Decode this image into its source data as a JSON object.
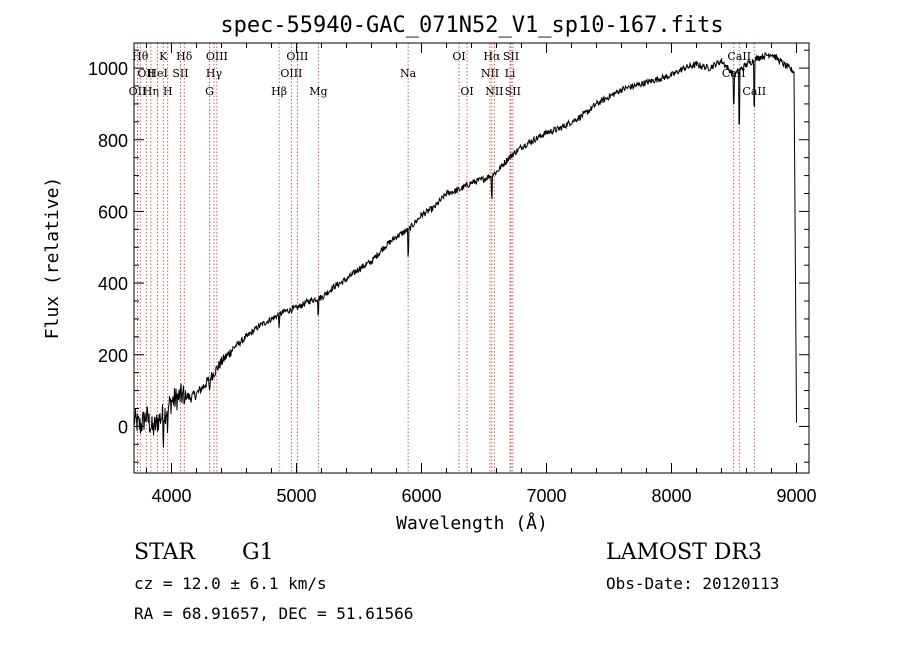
{
  "chart_data": {
    "type": "line",
    "title": "spec-55940-GAC_071N52_V1_sp10-167.fits",
    "xlabel": "Wavelength (Å)",
    "ylabel": "Flux (relative)",
    "xlim": [
      3700,
      9100
    ],
    "ylim": [
      -130,
      1070
    ],
    "x_ticks": [
      4000,
      5000,
      6000,
      7000,
      8000,
      9000
    ],
    "x_tick_labels": [
      "4000",
      "5000",
      "6000",
      "7000",
      "8000",
      "9000"
    ],
    "y_ticks": [
      0,
      200,
      400,
      600,
      800,
      1000
    ],
    "y_tick_labels": [
      "0",
      "200",
      "400",
      "600",
      "800",
      "1000"
    ],
    "series": [
      {
        "name": "spectrum",
        "x": [
          3700,
          3750,
          3800,
          3850,
          3900,
          3950,
          4000,
          4050,
          4100,
          4150,
          4200,
          4300,
          4400,
          4500,
          4600,
          4700,
          4800,
          4900,
          5000,
          5100,
          5200,
          5300,
          5400,
          5500,
          5600,
          5700,
          5800,
          5900,
          6000,
          6100,
          6200,
          6300,
          6400,
          6500,
          6600,
          6700,
          6800,
          6900,
          7000,
          7100,
          7200,
          7300,
          7400,
          7500,
          7600,
          7700,
          7800,
          7900,
          8000,
          8100,
          8200,
          8300,
          8400,
          8500,
          8600,
          8700,
          8800,
          8900,
          8980,
          9000
        ],
        "y": [
          20,
          0,
          30,
          -10,
          20,
          40,
          70,
          80,
          90,
          80,
          90,
          130,
          180,
          220,
          250,
          280,
          300,
          320,
          330,
          350,
          360,
          390,
          410,
          440,
          460,
          500,
          530,
          550,
          590,
          610,
          650,
          660,
          680,
          690,
          710,
          750,
          780,
          800,
          820,
          830,
          850,
          870,
          900,
          920,
          940,
          950,
          960,
          970,
          980,
          1000,
          1010,
          1000,
          1020,
          980,
          1010,
          1030,
          1040,
          1010,
          990,
          10
        ]
      }
    ],
    "lines": [
      {
        "x": 3750,
        "label": "Hθ",
        "row": 0
      },
      {
        "x": 3798,
        "label": "OII",
        "row": 1
      },
      {
        "x": 3728,
        "label": "OII",
        "row": 2
      },
      {
        "x": 3835,
        "label": "Hη",
        "row": 2
      },
      {
        "x": 3889,
        "label": "HeI",
        "row": 1
      },
      {
        "x": 3934,
        "label": "K",
        "row": 0
      },
      {
        "x": 3970,
        "label": "H",
        "row": 2
      },
      {
        "x": 4072,
        "label": "SII",
        "row": 1
      },
      {
        "x": 4102,
        "label": "Hδ",
        "row": 0
      },
      {
        "x": 4304,
        "label": "G",
        "row": 2
      },
      {
        "x": 4340,
        "label": "Hγ",
        "row": 1
      },
      {
        "x": 4363,
        "label": "OIII",
        "row": 0
      },
      {
        "x": 4861,
        "label": "Hβ",
        "row": 2
      },
      {
        "x": 4959,
        "label": "OIII",
        "row": 1
      },
      {
        "x": 5007,
        "label": "OIII",
        "row": 0
      },
      {
        "x": 5175,
        "label": "Mg",
        "row": 2
      },
      {
        "x": 5893,
        "label": "Na",
        "row": 1
      },
      {
        "x": 6300,
        "label": "OI",
        "row": 0
      },
      {
        "x": 6364,
        "label": "OI",
        "row": 2
      },
      {
        "x": 6548,
        "label": "NII",
        "row": 1
      },
      {
        "x": 6563,
        "label": "Hα",
        "row": 0
      },
      {
        "x": 6583,
        "label": "NII",
        "row": 2
      },
      {
        "x": 6708,
        "label": "Li",
        "row": 1
      },
      {
        "x": 6716,
        "label": "SII",
        "row": 0
      },
      {
        "x": 6731,
        "label": "SII",
        "row": 2
      },
      {
        "x": 8498,
        "label": "CaII",
        "row": 1
      },
      {
        "x": 8542,
        "label": "CaII",
        "row": 0
      },
      {
        "x": 8662,
        "label": "CaII",
        "row": 2
      }
    ]
  },
  "footer": {
    "class_label": "STAR",
    "subclass": "G1",
    "survey": "LAMOST DR3",
    "cz": "cz = 12.0 ± 6.1 km/s",
    "obs_date": "Obs-Date: 20120113",
    "coords": "RA =  68.91657, DEC =  51.61566"
  }
}
